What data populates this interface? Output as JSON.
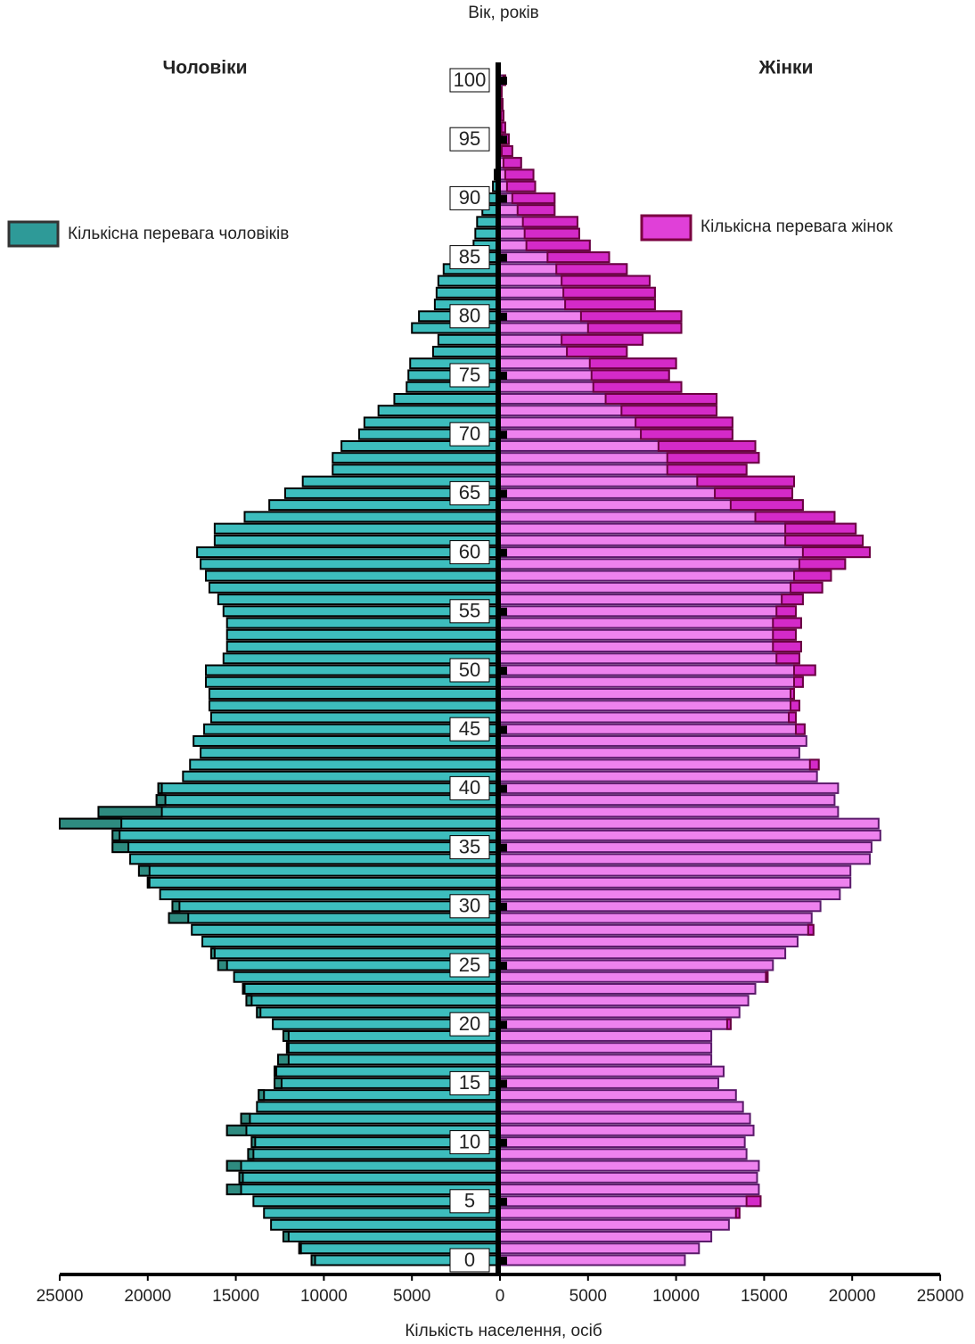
{
  "chart_data": {
    "type": "population-pyramid",
    "title": "Вік, років",
    "x_label": "Кількість населення, осіб",
    "categories": [
      0,
      null,
      null,
      null,
      null,
      5,
      null,
      null,
      null,
      null,
      10,
      null,
      null,
      null,
      null,
      15,
      null,
      null,
      null,
      null,
      20,
      null,
      null,
      null,
      null,
      25,
      null,
      null,
      null,
      null,
      30,
      null,
      null,
      null,
      null,
      35,
      null,
      null,
      null,
      null,
      40,
      null,
      null,
      null,
      null,
      45,
      null,
      null,
      null,
      null,
      50,
      null,
      null,
      null,
      null,
      55,
      null,
      null,
      null,
      null,
      60,
      null,
      null,
      null,
      null,
      65,
      null,
      null,
      null,
      null,
      70,
      null,
      null,
      null,
      null,
      75,
      null,
      null,
      null,
      null,
      80,
      null,
      null,
      null,
      null,
      85,
      null,
      null,
      null,
      null,
      90,
      null,
      null,
      null,
      null,
      95,
      null,
      null,
      null,
      null,
      100
    ],
    "series": [
      {
        "name": "Чоловіки",
        "color": "#3dbdbd",
        "excess_color": "#2e8b80",
        "values": [
          10700,
          11400,
          12300,
          13000,
          13400,
          14000,
          15500,
          14800,
          15500,
          14300,
          14100,
          15500,
          14700,
          13800,
          13700,
          12800,
          12800,
          12600,
          12100,
          12300,
          12900,
          13800,
          14400,
          14600,
          15100,
          16000,
          16400,
          16900,
          17500,
          18800,
          18600,
          19300,
          20000,
          20500,
          21000,
          22000,
          22000,
          25000,
          22800,
          19500,
          19400,
          18000,
          17600,
          17000,
          17400,
          16800,
          16400,
          16500,
          16500,
          16700,
          16700,
          15700,
          15500,
          15500,
          15500,
          15700,
          16000,
          16500,
          16700,
          17000,
          17200,
          16200,
          16200,
          14500,
          13100,
          12200,
          11200,
          9500,
          9500,
          9000,
          8000,
          7700,
          6900,
          6000,
          5300,
          5200,
          5100,
          3800,
          3500,
          5000,
          4600,
          3700,
          3600,
          3500,
          3200,
          2700,
          1500,
          1400,
          1300,
          1000,
          700,
          400,
          300,
          200,
          100,
          100,
          80,
          60,
          50,
          40,
          200
        ]
      },
      {
        "name": "Жінки",
        "color": "#ee82ee",
        "excess_color": "#d42ac8",
        "values": [
          10500,
          11300,
          12000,
          13000,
          13600,
          14800,
          14700,
          14600,
          14700,
          14000,
          13900,
          14400,
          14200,
          13800,
          13400,
          12400,
          12700,
          12000,
          12000,
          12000,
          13100,
          13600,
          14100,
          14500,
          15200,
          15500,
          16200,
          16900,
          17800,
          17700,
          18200,
          19300,
          19900,
          19900,
          21000,
          21100,
          21600,
          21500,
          19200,
          19000,
          19200,
          18000,
          18100,
          17000,
          17400,
          17300,
          16800,
          17000,
          16700,
          17200,
          17900,
          17000,
          17100,
          16800,
          17100,
          16800,
          17200,
          18300,
          18800,
          19600,
          21000,
          20600,
          20200,
          19000,
          17200,
          16600,
          16700,
          14000,
          14700,
          14500,
          13200,
          13200,
          12300,
          12300,
          10300,
          9600,
          10000,
          7200,
          8100,
          10300,
          10300,
          8800,
          8800,
          8500,
          7200,
          6200,
          5100,
          4500,
          4400,
          3100,
          3100,
          2000,
          1900,
          1200,
          700,
          500,
          300,
          200,
          150,
          100,
          300
        ]
      }
    ],
    "legend": [
      {
        "label": "Кількісна перевага чоловіків",
        "color": "#2e9a98"
      },
      {
        "label": "Кількісна перевага жінок",
        "color": "#e040d8"
      }
    ],
    "xlim": [
      -25000,
      25000
    ],
    "xticks": [
      {
        "value": -25000,
        "label": "25000"
      },
      {
        "value": -20000,
        "label": "20000"
      },
      {
        "value": -15000,
        "label": "15000"
      },
      {
        "value": -10000,
        "label": "10000"
      },
      {
        "value": -5000,
        "label": "5000"
      },
      0,
      5000,
      10000,
      15000,
      20000,
      25000
    ]
  }
}
